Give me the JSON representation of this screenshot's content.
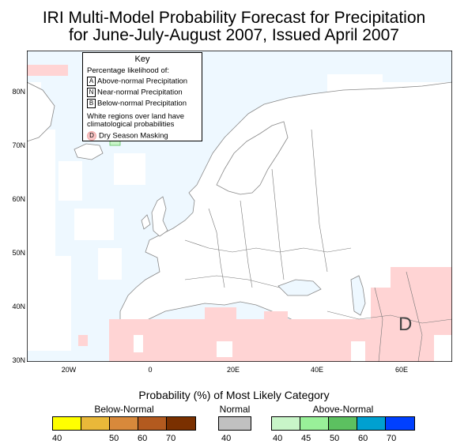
{
  "title_line1": "IRI Multi-Model Probability Forecast for Precipitation",
  "title_line2": "for June-July-August 2007, Issued April 2007",
  "lat_labels": [
    "80N",
    "70N",
    "60N",
    "50N",
    "40N",
    "30N"
  ],
  "lon_labels": [
    "20W",
    "0",
    "20E",
    "40E",
    "60E"
  ],
  "map_marker": "D",
  "key": {
    "title": "Key",
    "subtitle": "Percentage likelihood of:",
    "items": [
      {
        "code": "A",
        "label": "Above-normal Precipitation"
      },
      {
        "code": "N",
        "label": "Near-normal Precipitation"
      },
      {
        "code": "B",
        "label": "Below-normal Precipitation"
      }
    ],
    "note_line1": "White regions over land have",
    "note_line2": "climatological probabilities",
    "dry_code": "D",
    "dry_label": "Dry Season Masking"
  },
  "legend": {
    "title": "Probability (%) of Most Likely Category",
    "below": {
      "label": "Below-Normal",
      "ticks": [
        "40",
        "50",
        "60",
        "70"
      ],
      "colors": [
        "#ffff00",
        "#e9b839",
        "#d8893b",
        "#b35a1f",
        "#7a3000"
      ]
    },
    "normal": {
      "label": "Normal",
      "ticks": [
        "40"
      ],
      "colors": [
        "#c0c0c0"
      ]
    },
    "above": {
      "label": "Above-Normal",
      "ticks": [
        "40",
        "45",
        "50",
        "60",
        "70"
      ],
      "colors": [
        "#c8f5c8",
        "#99f099",
        "#5cc060",
        "#00a0d0",
        "#0040ff"
      ]
    }
  },
  "colors": {
    "ocean": "#eef8ff",
    "land": "#ffffff",
    "dry_mask": "#ffd4d4",
    "coast": "#888888",
    "border": "#777777"
  }
}
